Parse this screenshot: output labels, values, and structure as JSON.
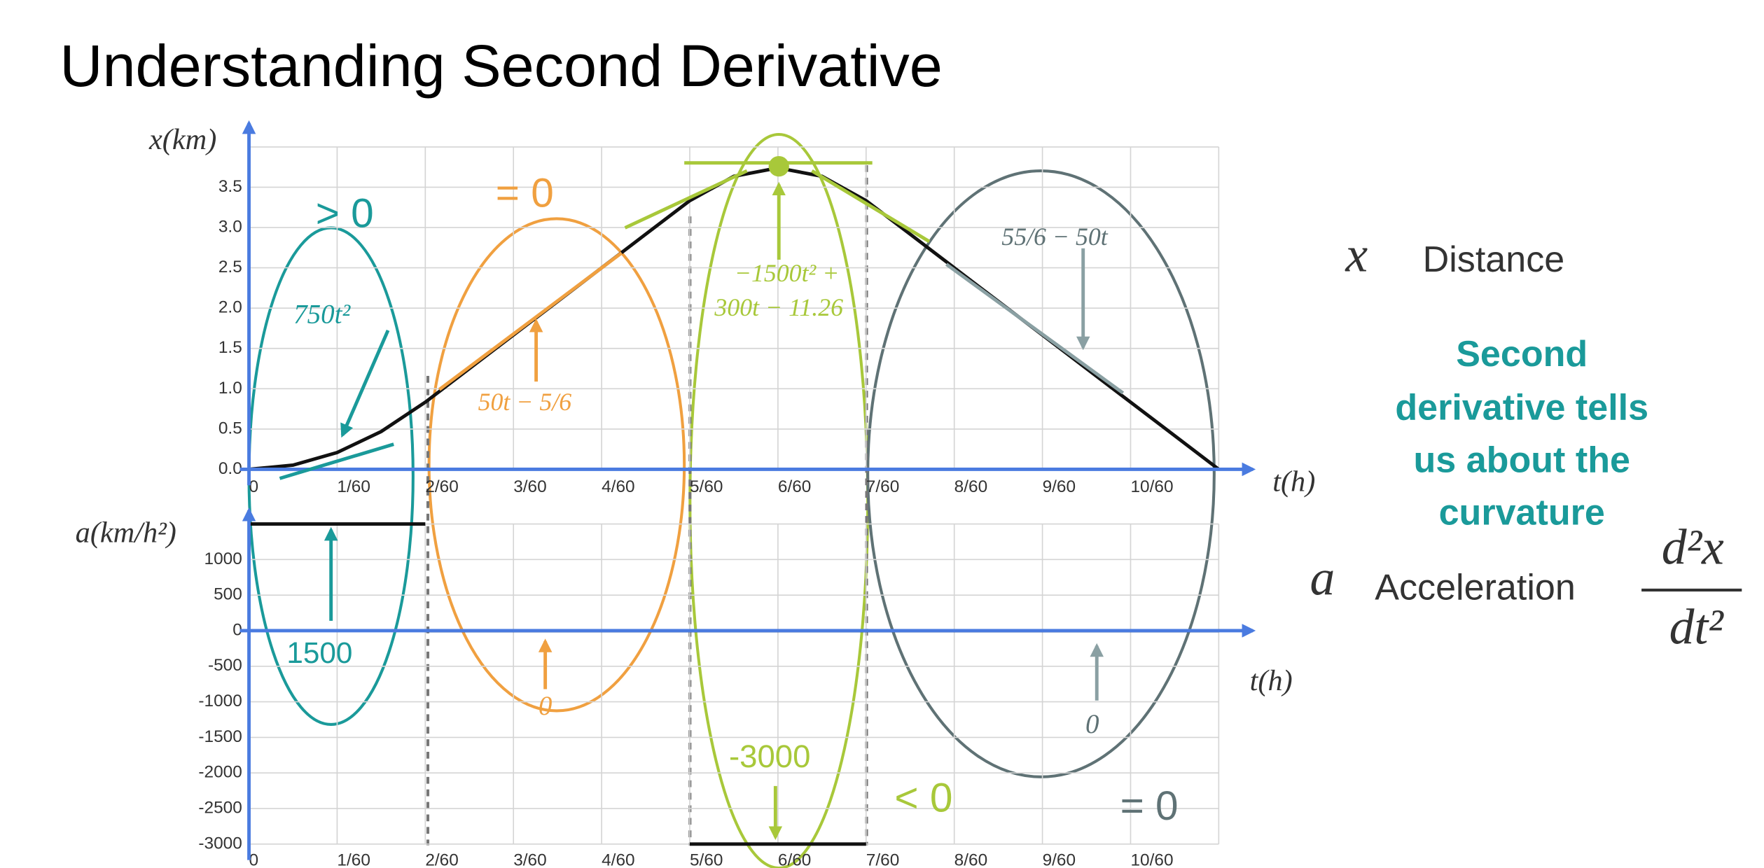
{
  "title": "Understanding Second Derivative",
  "chart_data": [
    {
      "type": "line",
      "y_label": "x(km)",
      "x_label": "t(h)",
      "xlim": [
        0,
        0.183333
      ],
      "xticks": [
        0,
        {
          "value": 0.016667,
          "label": "1/60"
        },
        {
          "value": 0.033333,
          "label": "2/60"
        },
        {
          "value": 0.05,
          "label": "3/60"
        },
        {
          "value": 0.066667,
          "label": "4/60"
        },
        {
          "value": 0.083333,
          "label": "5/60"
        },
        {
          "value": 0.1,
          "label": "6/60"
        },
        {
          "value": 0.116667,
          "label": "7/60"
        },
        {
          "value": 0.133333,
          "label": "8/60"
        },
        {
          "value": 0.15,
          "label": "9/60"
        },
        {
          "value": 0.166667,
          "label": "10/60"
        }
      ],
      "ylim": [
        0,
        4
      ],
      "yticks": [
        {
          "value": 0,
          "label": "0.0"
        },
        0.5,
        {
          "value": 1,
          "label": "1.0"
        },
        1.5,
        {
          "value": 2,
          "label": "2.0"
        },
        2.5,
        {
          "value": 3,
          "label": "3.0"
        },
        3.5
      ],
      "grid": true,
      "x": [
        0,
        0.008333,
        0.016667,
        0.025,
        0.033333,
        0.041667,
        0.05,
        0.058333,
        0.066667,
        0.075,
        0.083333,
        0.091667,
        0.1,
        0.108333,
        0.116667,
        0.125,
        0.133333,
        0.141667,
        0.15,
        0.158333,
        0.166667,
        0.175,
        0.183333
      ],
      "series": [
        {
          "color": "#111111",
          "values": [
            0,
            0.052,
            0.208,
            0.469,
            0.833,
            1.25,
            1.667,
            2.083,
            2.5,
            2.917,
            3.333,
            3.636,
            3.74,
            3.636,
            3.333,
            2.917,
            2.5,
            2.083,
            1.667,
            1.25,
            0.833,
            0.417,
            0
          ]
        }
      ],
      "annotations": [
        {
          "text": "> 0",
          "color": "#1a9a9a"
        },
        {
          "text": "750t²",
          "color": "#1a9a9a"
        },
        {
          "text": "= 0",
          "color": "#f0a040"
        },
        {
          "text": "50t − 5/6",
          "color": "#f0a040"
        },
        {
          "text": "−1500t² +",
          "color": "#a8c83a"
        },
        {
          "text": "300t − 11.26",
          "color": "#a8c83a"
        },
        {
          "text": "55/6 − 50t",
          "color": "#5f7275"
        }
      ]
    },
    {
      "type": "line",
      "y_label": "a(km/h²)",
      "x_label": "t(h)",
      "xlim": [
        0,
        0.183333
      ],
      "xticks": [
        0,
        {
          "value": 0.016667,
          "label": "1/60"
        },
        {
          "value": 0.033333,
          "label": "2/60"
        },
        {
          "value": 0.05,
          "label": "3/60"
        },
        {
          "value": 0.066667,
          "label": "4/60"
        },
        {
          "value": 0.083333,
          "label": "5/60"
        },
        {
          "value": 0.1,
          "label": "6/60"
        },
        {
          "value": 0.116667,
          "label": "7/60"
        },
        {
          "value": 0.133333,
          "label": "8/60"
        },
        {
          "value": 0.15,
          "label": "9/60"
        },
        {
          "value": 0.166667,
          "label": "10/60"
        }
      ],
      "ylim": [
        -3000,
        1500
      ],
      "yticks": [
        1000,
        500,
        0,
        -500,
        -1000,
        -1500,
        -2000,
        -2500,
        -3000
      ],
      "grid": true,
      "x": [
        0,
        0.033333,
        0.033333,
        0.033333,
        0.183333,
        0.083333,
        0.083333,
        0.116667
      ],
      "series": [
        {
          "color": "#111111",
          "values": [
            1500,
            1500,
            null,
            0,
            0,
            null,
            -3000,
            -3000
          ]
        }
      ],
      "annotations": [
        {
          "text": "1500",
          "color": "#1a9a9a"
        },
        {
          "text": "0",
          "color": "#f0a040"
        },
        {
          "text": "-3000",
          "color": "#a8c83a"
        },
        {
          "text": "< 0",
          "color": "#a8c83a"
        },
        {
          "text": "0",
          "color": "#5f7275"
        },
        {
          "text": "= 0",
          "color": "#5f7275"
        }
      ]
    }
  ],
  "side": {
    "x_symbol": "x",
    "x_name": "Distance",
    "note": [
      "Second",
      "derivative tells",
      "us about the",
      "curvature"
    ],
    "a_symbol": "a",
    "a_name": "Acceleration",
    "numerator": "d²x",
    "denominator": "dt²"
  }
}
